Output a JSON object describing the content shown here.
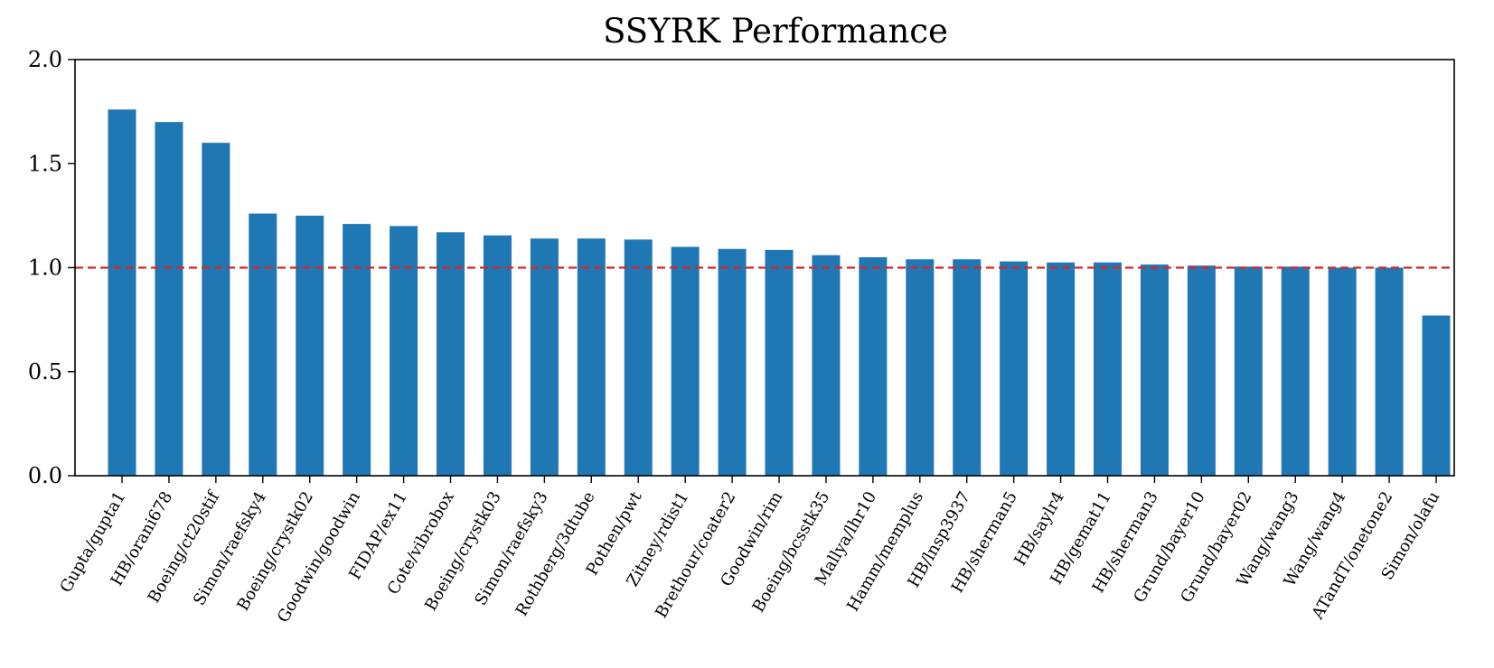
{
  "chart_data": {
    "type": "bar",
    "title": "SSYRK Performance",
    "xlabel": "",
    "ylabel": "",
    "ylim": [
      0,
      2.0
    ],
    "yticks": [
      "0.0",
      "0.5",
      "1.0",
      "1.5",
      "2.0"
    ],
    "categories": [
      "Gupta/gupta1",
      "HB/orani678",
      "Boeing/ct20stif",
      "Simon/raefsky4",
      "Boeing/crystk02",
      "Goodwin/goodwin",
      "FIDAP/ex11",
      "Cote/vibrobox",
      "Boeing/crystk03",
      "Simon/raefsky3",
      "Rothberg/3dtube",
      "Pothen/pwt",
      "Zitney/rdist1",
      "Brethour/coater2",
      "Goodwin/rim",
      "Boeing/bcsstk35",
      "Mallya/lhr10",
      "Hamm/memplus",
      "HB/lnsp3937",
      "HB/sherman5",
      "HB/saylr4",
      "HB/gemat11",
      "HB/sherman3",
      "Grund/bayer10",
      "Grund/bayer02",
      "Wang/wang3",
      "Wang/wang4",
      "ATandT/onetone2",
      "Simon/olafu"
    ],
    "values": [
      1.76,
      1.7,
      1.6,
      1.26,
      1.25,
      1.21,
      1.2,
      1.17,
      1.155,
      1.14,
      1.14,
      1.135,
      1.1,
      1.09,
      1.085,
      1.06,
      1.05,
      1.04,
      1.04,
      1.03,
      1.025,
      1.025,
      1.015,
      1.01,
      1.005,
      1.005,
      1.0,
      1.0,
      0.77
    ],
    "reference_line": {
      "value": 1.0,
      "style": "dashed",
      "color": "#d62728"
    },
    "bar_color": "#1f77b4",
    "grid": false,
    "legend": "none"
  }
}
